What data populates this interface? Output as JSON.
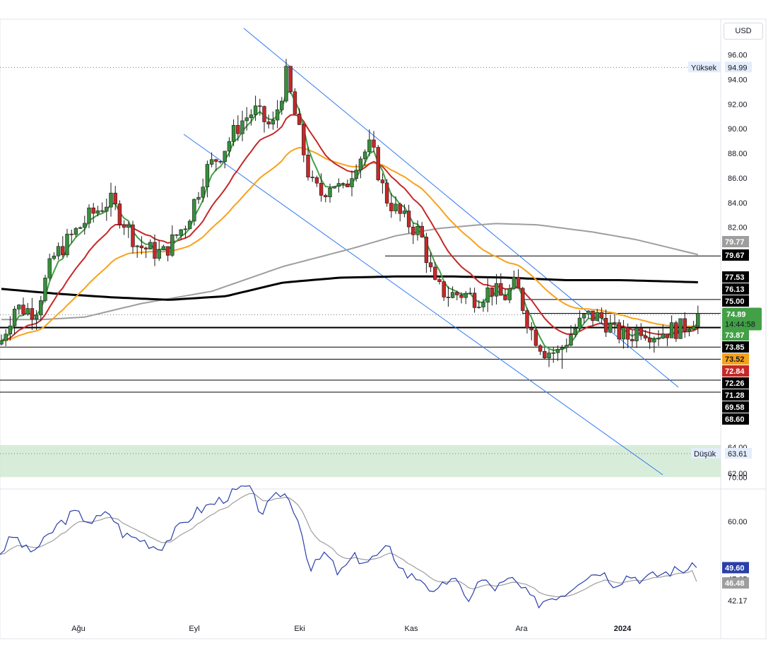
{
  "currency": "USD",
  "chart_data": [
    {
      "type": "candlestick",
      "title": "",
      "x_labels": [
        "Ağu",
        "Eyl",
        "Eki",
        "Kas",
        "Ara",
        "2024"
      ],
      "y_ticks": [
        "96.00",
        "94.00",
        "92.00",
        "90.00",
        "88.00",
        "86.00",
        "84.00",
        "82.00",
        "62.00"
      ],
      "ylim": [
        61,
        97
      ],
      "high_label": "Yüksek",
      "high_value": "94.99",
      "low_label": "Düşük",
      "low_value": "63.61",
      "partial_tick": "64.00",
      "last_price": "74.89",
      "countdown": "14:44:58",
      "price_tags": [
        {
          "value": "79.77",
          "bg": "#9e9e9e",
          "fg": "#ffffff"
        },
        {
          "value": "79.67",
          "bg": "#000000",
          "fg": "#ffffff"
        },
        {
          "value": "77.53",
          "bg": "#000000",
          "fg": "#ffffff"
        },
        {
          "value": "76.13",
          "bg": "#000000",
          "fg": "#ffffff"
        },
        {
          "value": "75.00",
          "bg": "#000000",
          "fg": "#ffffff"
        },
        {
          "value": "73.87",
          "bg": "#43a047",
          "fg": "#ffffff"
        },
        {
          "value": "73.85",
          "bg": "#000000",
          "fg": "#ffffff"
        },
        {
          "value": "73.52",
          "bg": "#f7a21a",
          "fg": "#131722"
        },
        {
          "value": "72.84",
          "bg": "#c62828",
          "fg": "#ffffff"
        },
        {
          "value": "72.26",
          "bg": "#000000",
          "fg": "#ffffff"
        },
        {
          "value": "71.28",
          "bg": "#000000",
          "fg": "#ffffff"
        },
        {
          "value": "69.58",
          "bg": "#000000",
          "fg": "#ffffff"
        },
        {
          "value": "68.60",
          "bg": "#000000",
          "fg": "#ffffff"
        }
      ],
      "horizontal_levels": [
        79.67,
        76.13,
        75.0,
        73.87,
        73.85,
        72.26,
        71.28,
        69.58,
        68.6
      ],
      "support_zone": [
        61.7,
        64.3
      ],
      "moving_averages": [
        {
          "color": "#43a047",
          "last": 73.87
        },
        {
          "color": "#c62828",
          "last": 72.84
        },
        {
          "color": "#f7a21a",
          "last": 73.52
        },
        {
          "color": "#9e9e9e",
          "last": 79.77
        },
        {
          "color": "#000000",
          "last": 77.53
        }
      ],
      "colors": {
        "up": "#388e3c",
        "down": "#c62828",
        "channel": "#3179f5"
      }
    },
    {
      "type": "line",
      "title": "",
      "y_ticks": [
        "70.00",
        "60.00",
        "47.05",
        "42.17"
      ],
      "ylim": [
        40.5,
        71.5
      ],
      "series": [
        {
          "color": "#2a3fa8",
          "last": "49.60"
        },
        {
          "color": "#9e9e9e",
          "last": "46.48"
        }
      ]
    }
  ]
}
